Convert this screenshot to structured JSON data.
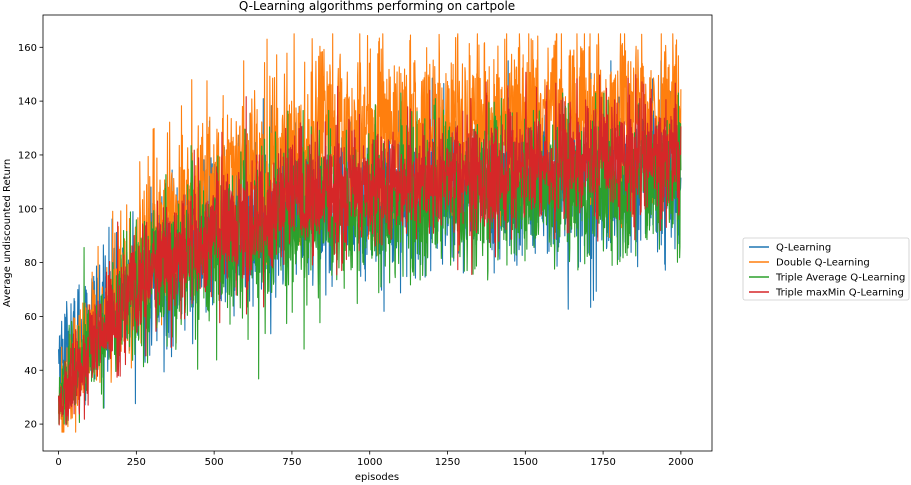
{
  "chart_data": {
    "type": "line",
    "title": "Q-Learning algorithms performing on cartpole",
    "xlabel": "episodes",
    "ylabel": "Average undiscounted Return",
    "xlim": [
      -50,
      2100
    ],
    "ylim": [
      10,
      172
    ],
    "x_ticks": [
      0,
      250,
      500,
      750,
      1000,
      1250,
      1500,
      1750,
      2000
    ],
    "y_ticks": [
      20,
      40,
      60,
      80,
      100,
      120,
      140,
      160
    ],
    "legend_placement": "right",
    "episodes": [
      0,
      2000
    ],
    "series": [
      {
        "name": "Q-Learning",
        "color": "#1f77b4",
        "trend_x": [
          0,
          25,
          50,
          100,
          150,
          200,
          250,
          300,
          400,
          500,
          600,
          750,
          1000,
          1250,
          1500,
          1750,
          2000
        ],
        "trend_y": [
          46,
          48,
          52,
          58,
          63,
          67,
          70,
          75,
          82,
          89,
          94,
          99,
          105,
          107,
          109,
          111,
          113
        ],
        "noise": 15,
        "min": 26,
        "max": 155
      },
      {
        "name": "Double Q-Learning",
        "color": "#ff7f0e",
        "trend_x": [
          0,
          25,
          50,
          100,
          150,
          200,
          250,
          300,
          400,
          500,
          600,
          750,
          1000,
          1250,
          1500,
          1750,
          2000
        ],
        "trend_y": [
          30,
          34,
          40,
          50,
          60,
          70,
          80,
          90,
          102,
          110,
          116,
          122,
          129,
          131,
          133,
          134,
          135
        ],
        "noise": 16,
        "min": 17,
        "max": 165
      },
      {
        "name": "Triple Average Q-Learning",
        "color": "#2ca02c",
        "trend_x": [
          0,
          25,
          50,
          100,
          150,
          200,
          250,
          300,
          400,
          500,
          600,
          750,
          1000,
          1250,
          1500,
          1750,
          2000
        ],
        "trend_y": [
          30,
          33,
          38,
          47,
          55,
          62,
          68,
          73,
          80,
          86,
          91,
          96,
          101,
          104,
          106,
          108,
          110
        ],
        "noise": 14,
        "min": 20,
        "max": 143
      },
      {
        "name": "Triple maxMin Q-Learning",
        "color": "#d62728",
        "trend_x": [
          0,
          25,
          50,
          100,
          150,
          200,
          250,
          300,
          400,
          500,
          600,
          750,
          1000,
          1250,
          1500,
          1750,
          2000
        ],
        "trend_y": [
          28,
          31,
          36,
          46,
          55,
          63,
          70,
          76,
          84,
          91,
          96,
          102,
          108,
          112,
          115,
          118,
          120
        ],
        "noise": 12,
        "min": 19,
        "max": 154
      }
    ]
  }
}
